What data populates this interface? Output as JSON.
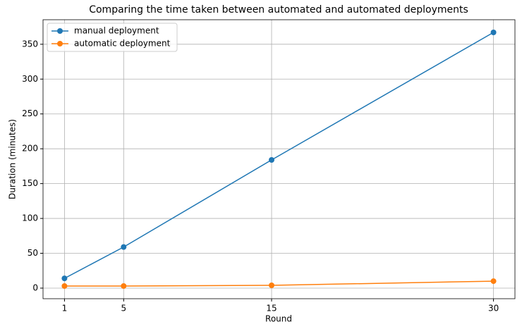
{
  "chart_data": {
    "type": "line",
    "title": "Comparing the time taken between automated and automated deployments",
    "x_label": "Round",
    "y_label": "Duration (minutes)",
    "x": [
      1,
      5,
      15,
      30
    ],
    "series": [
      {
        "name": "manual deployment",
        "color": "#1f77b4",
        "values": [
          14,
          59,
          184,
          367
        ]
      },
      {
        "name": "automatic deployment",
        "color": "#ff7f0e",
        "values": [
          3,
          3,
          4,
          10
        ]
      }
    ],
    "xlim": [
      -0.45,
      31.45
    ],
    "ylim": [
      -15.2,
      385.2
    ],
    "xticks": [
      1,
      5,
      15,
      30
    ],
    "yticks": [
      0,
      50,
      100,
      150,
      200,
      250,
      300,
      350
    ],
    "grid": true,
    "legend": "upper left",
    "markers": true
  }
}
